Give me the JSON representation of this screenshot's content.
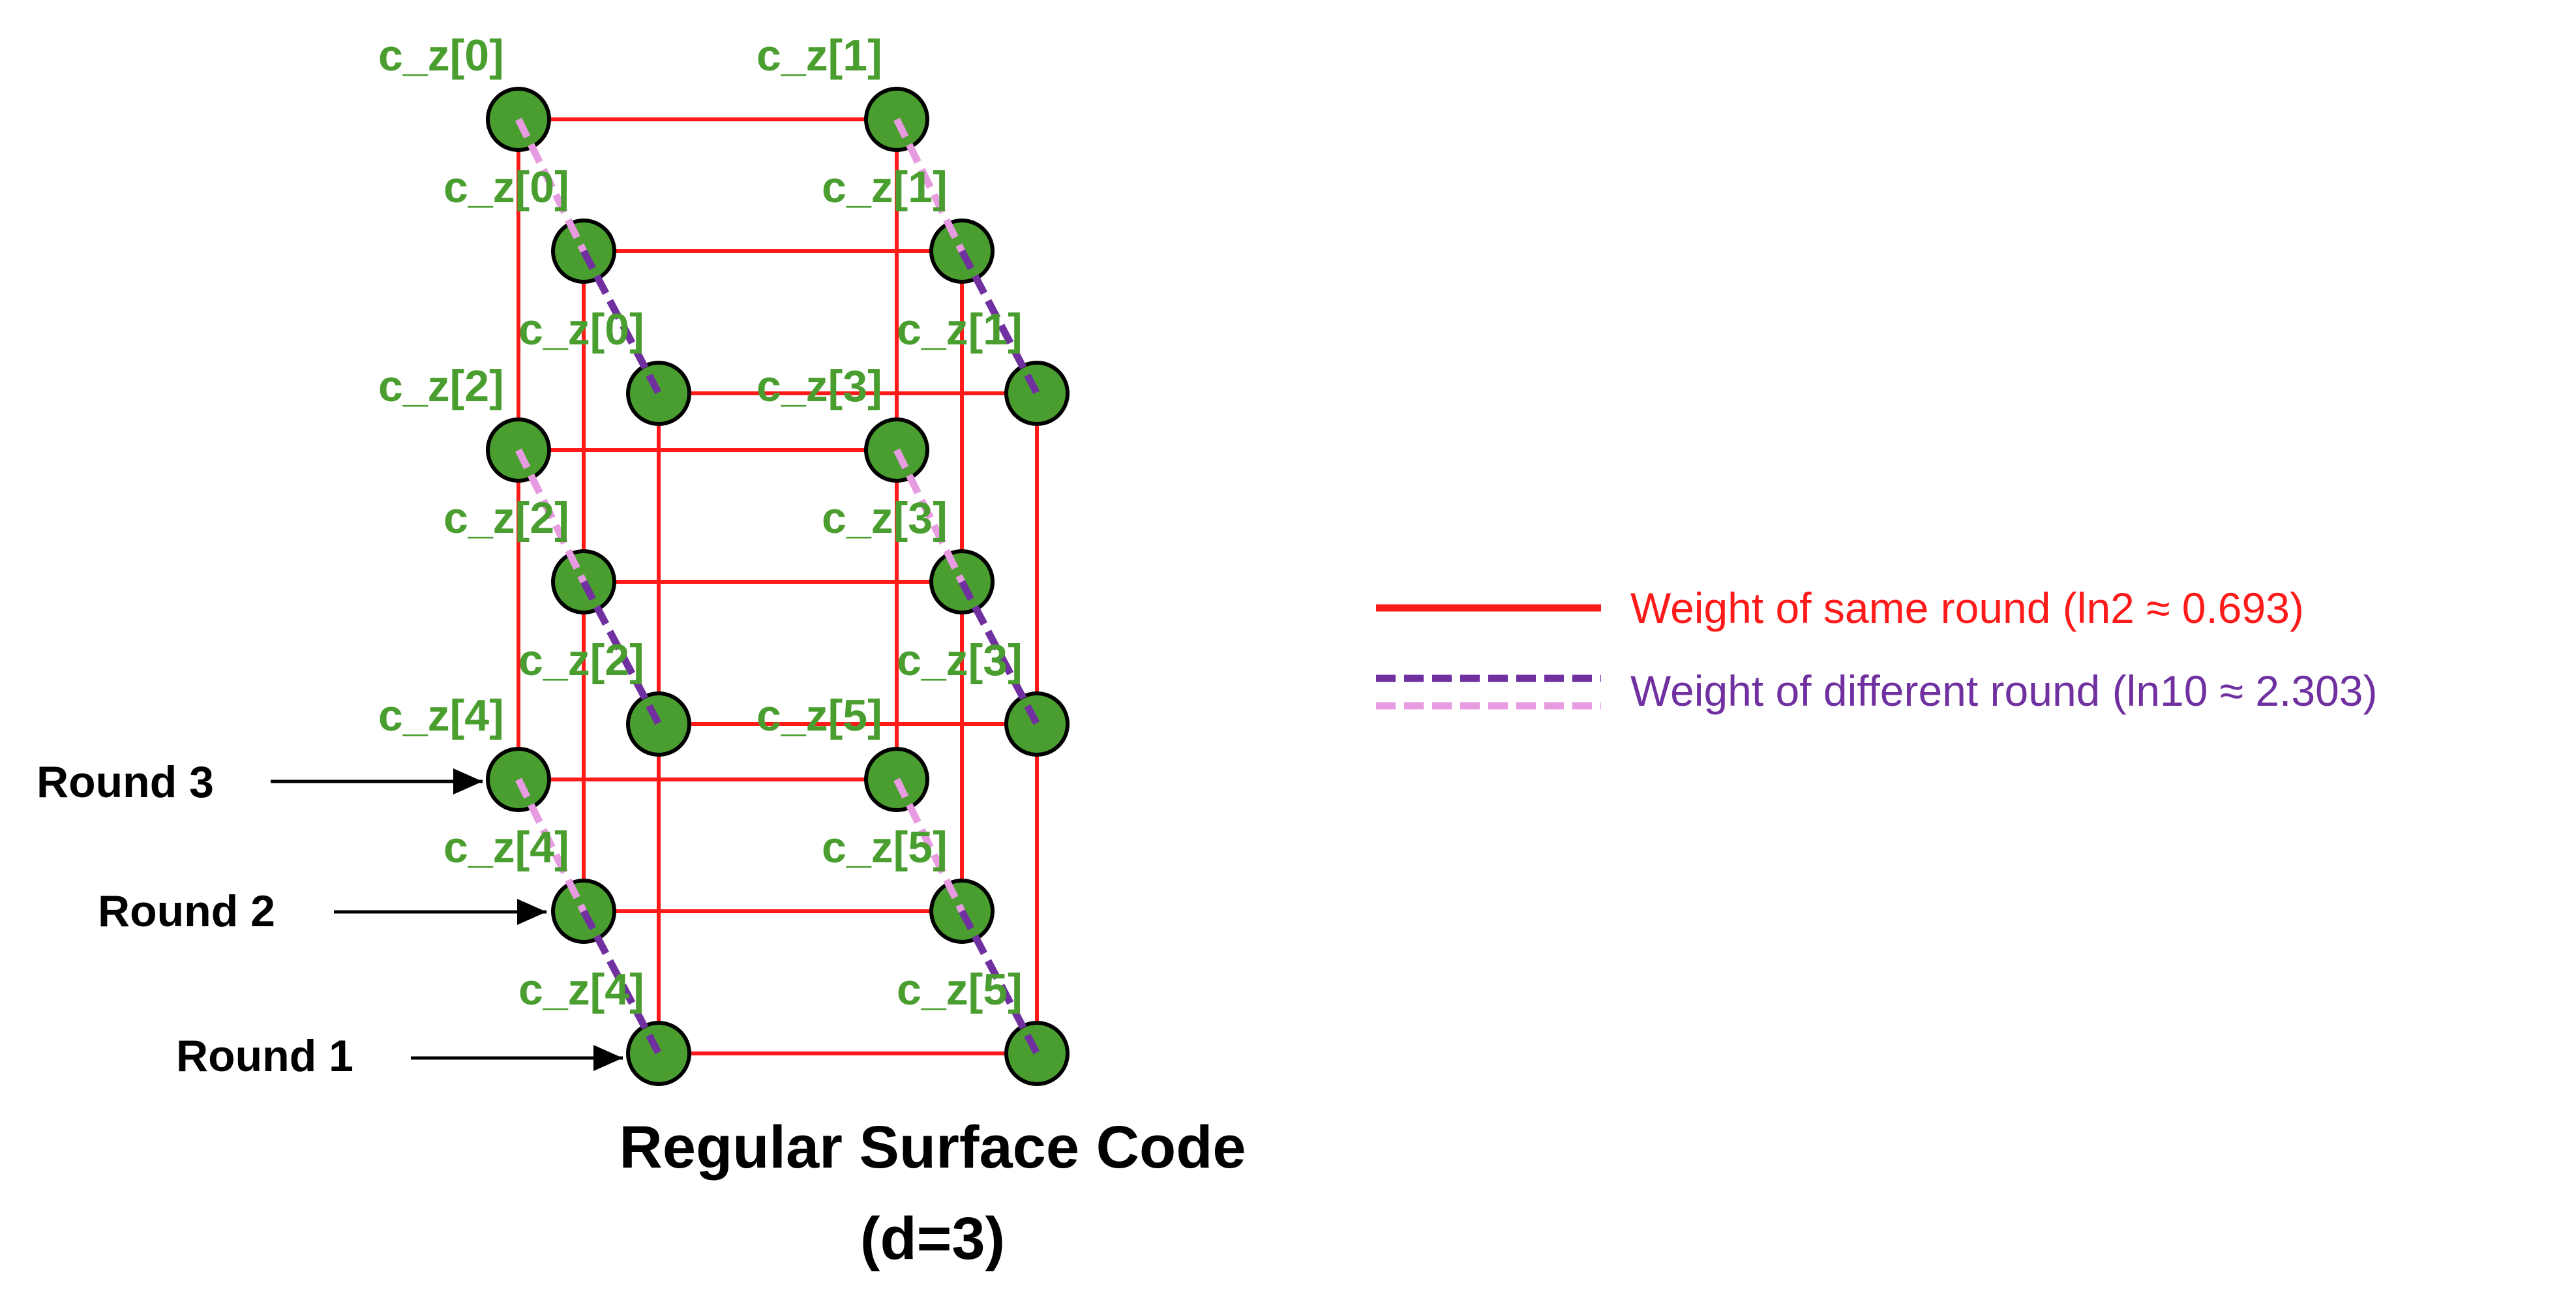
{
  "colors": {
    "node_fill": "#4a9e2f",
    "node_stroke": "#000000",
    "label_green": "#4a9e2f",
    "same_round_edge": "#ff1a1a",
    "diff_round_dark": "#7030a0",
    "diff_round_light": "#e79be0",
    "arrow": "#000000",
    "text": "#000000"
  },
  "rounds": [
    {
      "id": "round-1",
      "label": "Round 1"
    },
    {
      "id": "round-2",
      "label": "Round 2"
    },
    {
      "id": "round-3",
      "label": "Round 3"
    }
  ],
  "node_labels": {
    "round_3": [
      "c_z[0]",
      "c_z[1]",
      "c_z[2]",
      "c_z[3]",
      "c_z[4]",
      "c_z[5]"
    ],
    "round_2": [
      "c_z[0]",
      "c_z[1]",
      "c_z[2]",
      "c_z[3]",
      "c_z[4]",
      "c_z[5]"
    ],
    "round_1": [
      "c_z[0]",
      "c_z[1]",
      "c_z[2]",
      "c_z[3]",
      "c_z[4]",
      "c_z[5]"
    ]
  },
  "legend": {
    "same_round": "Weight of same round (ln2 ≈ 0.693)",
    "different_round": "Weight of different round (ln10 ≈ 2.303)"
  },
  "title": {
    "line1": "Regular Surface Code",
    "line2": "(d=3)"
  }
}
